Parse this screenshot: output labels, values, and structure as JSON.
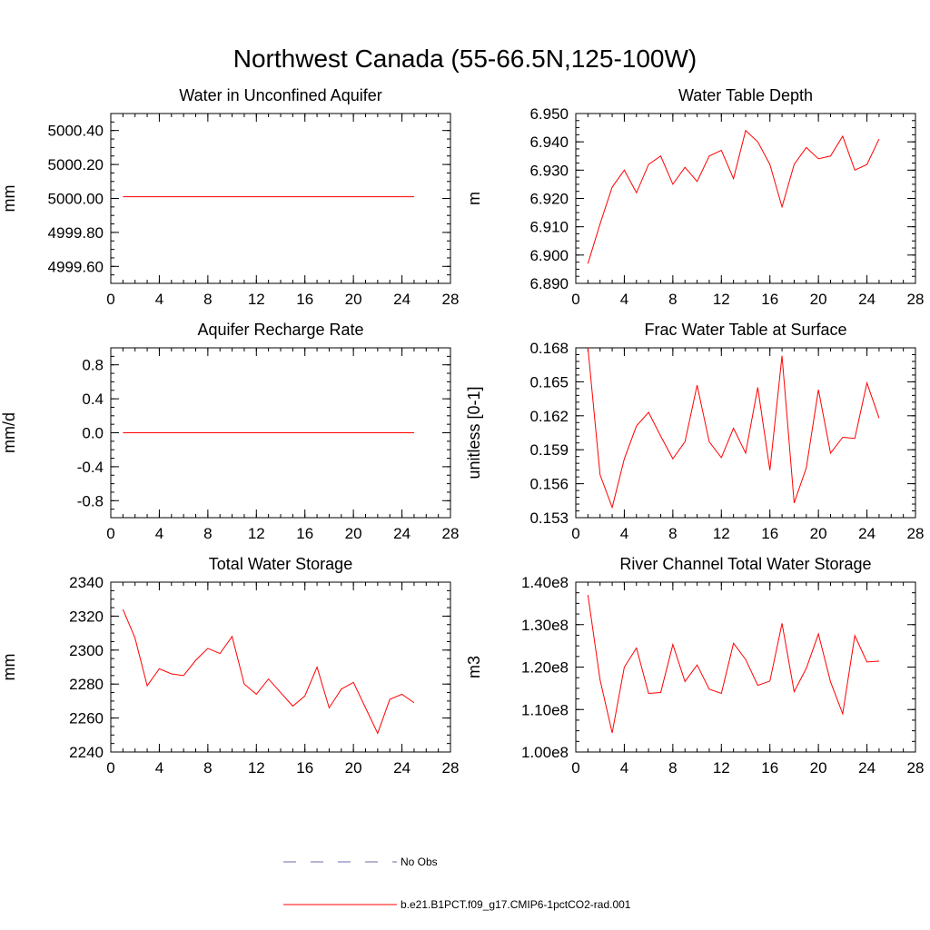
{
  "figure": {
    "title": "Northwest Canada (55-66.5N,125-100W)",
    "line_color": "#ff0000",
    "obs_color": "#6b6ba8"
  },
  "legend": {
    "obs_label": "No Obs",
    "model_label": "b.e21.B1PCT.f09_g17.CMIP6-1pctCO2-rad.001"
  },
  "chart_data": [
    {
      "type": "line",
      "title": "Water in Unconfined Aquifer",
      "ylabel": "mm",
      "xlim": [
        0,
        28
      ],
      "xticks": [
        0,
        4,
        8,
        12,
        16,
        20,
        24,
        28
      ],
      "xtick_labels": [
        "0",
        "4",
        "8",
        "12",
        "16",
        "20",
        "24",
        "28"
      ],
      "ylim": [
        4999.5,
        5000.5
      ],
      "yticks": [
        4999.6,
        4999.8,
        5000.0,
        5000.2,
        5000.4
      ],
      "ytick_labels": [
        "4999.60",
        "4999.80",
        "5000.00",
        "5000.20",
        "5000.40"
      ],
      "yminor": 0.05,
      "x": [
        1,
        2,
        3,
        4,
        5,
        6,
        7,
        8,
        9,
        10,
        11,
        12,
        13,
        14,
        15,
        16,
        17,
        18,
        19,
        20,
        21,
        22,
        23,
        24,
        25
      ],
      "series": [
        {
          "values": [
            5000.01,
            5000.01,
            5000.01,
            5000.01,
            5000.01,
            5000.01,
            5000.01,
            5000.01,
            5000.01,
            5000.01,
            5000.01,
            5000.01,
            5000.01,
            5000.01,
            5000.01,
            5000.01,
            5000.01,
            5000.01,
            5000.01,
            5000.01,
            5000.01,
            5000.01,
            5000.01,
            5000.01,
            5000.01
          ]
        }
      ]
    },
    {
      "type": "line",
      "title": "Water Table Depth",
      "ylabel": "m",
      "xlim": [
        0,
        28
      ],
      "xticks": [
        0,
        4,
        8,
        12,
        16,
        20,
        24,
        28
      ],
      "xtick_labels": [
        "0",
        "4",
        "8",
        "12",
        "16",
        "20",
        "24",
        "28"
      ],
      "ylim": [
        6.89,
        6.95
      ],
      "yticks": [
        6.89,
        6.9,
        6.91,
        6.92,
        6.93,
        6.94,
        6.95
      ],
      "ytick_labels": [
        "6.890",
        "6.900",
        "6.910",
        "6.920",
        "6.930",
        "6.940",
        "6.950"
      ],
      "yminor": 0.0025,
      "x": [
        1,
        2,
        3,
        4,
        5,
        6,
        7,
        8,
        9,
        10,
        11,
        12,
        13,
        14,
        15,
        16,
        17,
        18,
        19,
        20,
        21,
        22,
        23,
        24,
        25
      ],
      "series": [
        {
          "values": [
            6.897,
            6.911,
            6.924,
            6.93,
            6.922,
            6.932,
            6.935,
            6.925,
            6.931,
            6.926,
            6.935,
            6.937,
            6.927,
            6.944,
            6.94,
            6.932,
            6.917,
            6.932,
            6.938,
            6.934,
            6.935,
            6.942,
            6.93,
            6.932,
            6.941
          ]
        }
      ]
    },
    {
      "type": "line",
      "title": "Aquifer Recharge Rate",
      "ylabel": "mm/d",
      "xlim": [
        0,
        28
      ],
      "xticks": [
        0,
        4,
        8,
        12,
        16,
        20,
        24,
        28
      ],
      "xtick_labels": [
        "0",
        "4",
        "8",
        "12",
        "16",
        "20",
        "24",
        "28"
      ],
      "ylim": [
        -1.0,
        1.0
      ],
      "yticks": [
        -0.8,
        -0.4,
        0.0,
        0.4,
        0.8
      ],
      "ytick_labels": [
        "-0.8",
        "-0.4",
        "0.0",
        "0.4",
        "0.8"
      ],
      "yminor": 0.1,
      "x": [
        1,
        2,
        3,
        4,
        5,
        6,
        7,
        8,
        9,
        10,
        11,
        12,
        13,
        14,
        15,
        16,
        17,
        18,
        19,
        20,
        21,
        22,
        23,
        24,
        25
      ],
      "series": [
        {
          "values": [
            0,
            0,
            0,
            0,
            0,
            0,
            0,
            0,
            0,
            0,
            0,
            0,
            0,
            0,
            0,
            0,
            0,
            0,
            0,
            0,
            0,
            0,
            0,
            0,
            0
          ]
        }
      ]
    },
    {
      "type": "line",
      "title": "Frac Water Table at Surface",
      "ylabel": "unitless [0-1]",
      "xlim": [
        0,
        28
      ],
      "xticks": [
        0,
        4,
        8,
        12,
        16,
        20,
        24,
        28
      ],
      "xtick_labels": [
        "0",
        "4",
        "8",
        "12",
        "16",
        "20",
        "24",
        "28"
      ],
      "ylim": [
        0.153,
        0.168
      ],
      "yticks": [
        0.153,
        0.156,
        0.159,
        0.162,
        0.165,
        0.168
      ],
      "ytick_labels": [
        "0.153",
        "0.156",
        "0.159",
        "0.162",
        "0.165",
        "0.168"
      ],
      "yminor": 0.0006,
      "x": [
        1,
        2,
        3,
        4,
        5,
        6,
        7,
        8,
        9,
        10,
        11,
        12,
        13,
        14,
        15,
        16,
        17,
        18,
        19,
        20,
        21,
        22,
        23,
        24,
        25
      ],
      "series": [
        {
          "values": [
            0.168,
            0.1568,
            0.1539,
            0.1582,
            0.1611,
            0.1623,
            0.1602,
            0.1582,
            0.1597,
            0.1647,
            0.1597,
            0.1583,
            0.1609,
            0.1587,
            0.1645,
            0.1572,
            0.1673,
            0.1543,
            0.1574,
            0.1643,
            0.1587,
            0.1601,
            0.16,
            0.1649,
            0.1618
          ]
        }
      ]
    },
    {
      "type": "line",
      "title": "Total Water Storage",
      "ylabel": "mm",
      "xlim": [
        0,
        28
      ],
      "xticks": [
        0,
        4,
        8,
        12,
        16,
        20,
        24,
        28
      ],
      "xtick_labels": [
        "0",
        "4",
        "8",
        "12",
        "16",
        "20",
        "24",
        "28"
      ],
      "ylim": [
        2240,
        2340
      ],
      "yticks": [
        2240,
        2260,
        2280,
        2300,
        2320,
        2340
      ],
      "ytick_labels": [
        "2240",
        "2260",
        "2280",
        "2300",
        "2320",
        "2340"
      ],
      "yminor": 5,
      "x": [
        1,
        2,
        3,
        4,
        5,
        6,
        7,
        8,
        9,
        10,
        11,
        12,
        13,
        14,
        15,
        16,
        17,
        18,
        19,
        20,
        21,
        22,
        23,
        24,
        25
      ],
      "series": [
        {
          "values": [
            2324,
            2307,
            2279,
            2289,
            2286,
            2285,
            2294,
            2301,
            2298,
            2308,
            2280,
            2274,
            2283,
            2275,
            2267,
            2273,
            2290,
            2266,
            2277,
            2281,
            2266,
            2251,
            2271,
            2274,
            2269
          ]
        }
      ]
    },
    {
      "type": "line",
      "title": "River Channel Total Water Storage",
      "ylabel": "m3",
      "xlim": [
        0,
        28
      ],
      "xticks": [
        0,
        4,
        8,
        12,
        16,
        20,
        24,
        28
      ],
      "xtick_labels": [
        "0",
        "4",
        "8",
        "12",
        "16",
        "20",
        "24",
        "28"
      ],
      "ylim": [
        100000000.0,
        140000000.0
      ],
      "yticks": [
        100000000.0,
        110000000.0,
        120000000.0,
        130000000.0,
        140000000.0
      ],
      "ytick_labels": [
        "1.00e8",
        "1.10e8",
        "1.20e8",
        "1.30e8",
        "1.40e8"
      ],
      "yminor": 2500000.0,
      "x": [
        1,
        2,
        3,
        4,
        5,
        6,
        7,
        8,
        9,
        10,
        11,
        12,
        13,
        14,
        15,
        16,
        17,
        18,
        19,
        20,
        21,
        22,
        23,
        24,
        25
      ],
      "series": [
        {
          "values": [
            137000000.0,
            117000000.0,
            104500000.0,
            120000000.0,
            124500000.0,
            113800000.0,
            114000000.0,
            125300000.0,
            116600000.0,
            120500000.0,
            114800000.0,
            113800000.0,
            125600000.0,
            121800000.0,
            115700000.0,
            116700000.0,
            130300000.0,
            114200000.0,
            119700000.0,
            127800000.0,
            116500000.0,
            109000000.0,
            127400000.0,
            121200000.0,
            121400000.0
          ]
        }
      ]
    }
  ]
}
